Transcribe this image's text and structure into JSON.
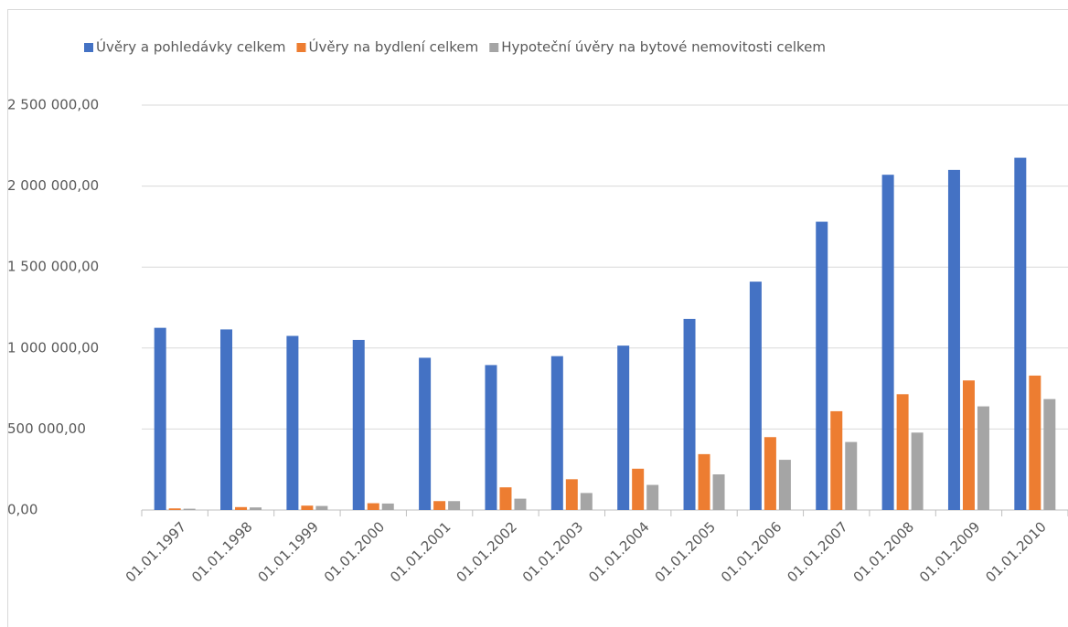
{
  "chart_data": {
    "type": "bar",
    "categories": [
      "01.01.1997",
      "01.01.1998",
      "01.01.1999",
      "01.01.2000",
      "01.01.2001",
      "01.01.2002",
      "01.01.2003",
      "01.01.2004",
      "01.01.2005",
      "01.01.2006",
      "01.01.2007",
      "01.01.2008",
      "01.01.2009",
      "01.01.2010"
    ],
    "series": [
      {
        "name": "Úvěry a pohledávky celkem",
        "color": "#4472c4",
        "values": [
          1125000,
          1115000,
          1075000,
          1050000,
          940000,
          895000,
          950000,
          1015000,
          1180000,
          1410000,
          1780000,
          2070000,
          2100000,
          2175000
        ]
      },
      {
        "name": "Úvěry na bydlení celkem",
        "color": "#ed7d31",
        "values": [
          10000,
          18000,
          27000,
          42000,
          55000,
          140000,
          190000,
          255000,
          345000,
          450000,
          610000,
          715000,
          800000,
          830000
        ]
      },
      {
        "name": "Hypoteční úvěry na bytové nemovitosti celkem",
        "color": "#a5a5a5",
        "values": [
          8000,
          16000,
          25000,
          40000,
          55000,
          70000,
          105000,
          155000,
          220000,
          310000,
          420000,
          478000,
          640000,
          685000
        ]
      }
    ],
    "ylim": [
      0,
      2500000
    ],
    "yticks": [
      {
        "value": 0,
        "label": "0,00"
      },
      {
        "value": 500000,
        "label": "500 000,00"
      },
      {
        "value": 1000000,
        "label": "1 000 000,00"
      },
      {
        "value": 1500000,
        "label": "1 500 000,00"
      },
      {
        "value": 2000000,
        "label": "2 000 000,00"
      },
      {
        "value": 2500000,
        "label": "2 500 000,00"
      }
    ],
    "grid": true,
    "legend": "top"
  }
}
